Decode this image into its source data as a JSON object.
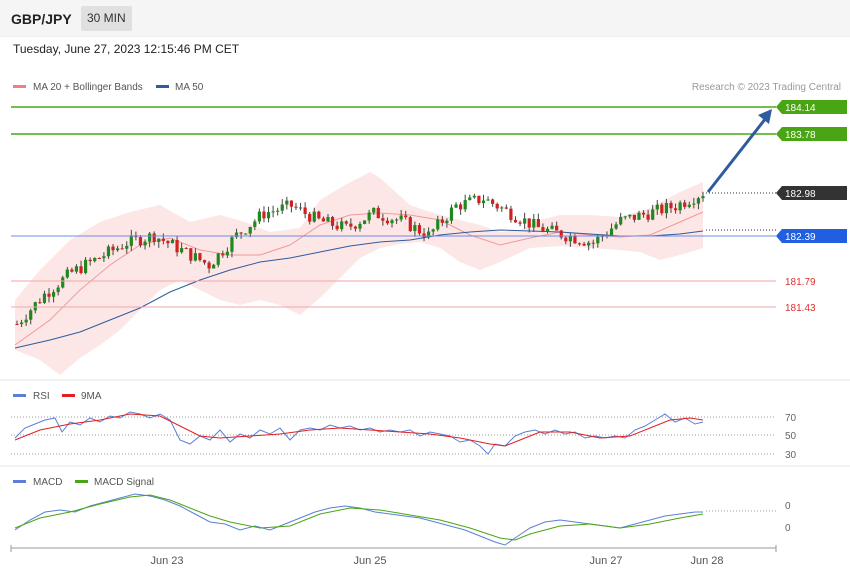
{
  "header": {
    "symbol": "GBP/JPY",
    "timeframe": "30 MIN",
    "datetime": "Tuesday, June 27, 2023 12:15:46 PM CET"
  },
  "main_chart": {
    "legend": [
      {
        "label": "MA 20 + Bollinger Bands",
        "color": "#f08080"
      },
      {
        "label": "MA 50",
        "color": "#2e5c9e"
      }
    ],
    "copyright": "Research © 2023 Trading Central",
    "levels": [
      {
        "value": "184.14",
        "style": "green-line",
        "color": "#4aa514"
      },
      {
        "value": "183.78",
        "style": "green-line",
        "color": "#4aa514"
      },
      {
        "value": "182.98",
        "style": "dotted",
        "color": "#333333"
      },
      {
        "value": "182.39",
        "style": "blue-line",
        "color": "#1f5fe0"
      },
      {
        "value": "181.79",
        "style": "red-line",
        "color": "#e03030"
      },
      {
        "value": "181.43",
        "style": "red-line",
        "color": "#e03030"
      }
    ],
    "price_range": {
      "top": 184.14,
      "bottom": 181.43
    }
  },
  "rsi_panel": {
    "legend": [
      {
        "label": "RSI",
        "color": "#5b7fd6"
      },
      {
        "label": "9MA",
        "color": "#e02020"
      }
    ],
    "levels": [
      "70",
      "50",
      "30"
    ]
  },
  "macd_panel": {
    "legend": [
      {
        "label": "MACD",
        "color": "#5b7fd6"
      },
      {
        "label": "MACD Signal",
        "color": "#4aa514"
      }
    ],
    "levels": [
      "0",
      "0"
    ]
  },
  "x_axis": {
    "labels": [
      "Jun 23",
      "Jun 25",
      "Jun 27",
      "Jun 28"
    ]
  },
  "chart_data": {
    "type": "candlestick",
    "series": [
      {
        "name": "GBP/JPY",
        "close_approx": [
          181.2,
          181.6,
          181.9,
          182.1,
          182.3,
          182.4,
          182.2,
          182.0,
          182.4,
          182.7,
          182.8,
          182.6,
          182.5,
          182.7,
          182.6,
          182.4,
          182.8,
          182.9,
          182.7,
          182.5,
          182.4,
          182.3,
          182.6,
          182.7,
          182.8,
          182.98
        ]
      }
    ],
    "annotations": [
      "arrow pointing to 184.14 target"
    ]
  }
}
